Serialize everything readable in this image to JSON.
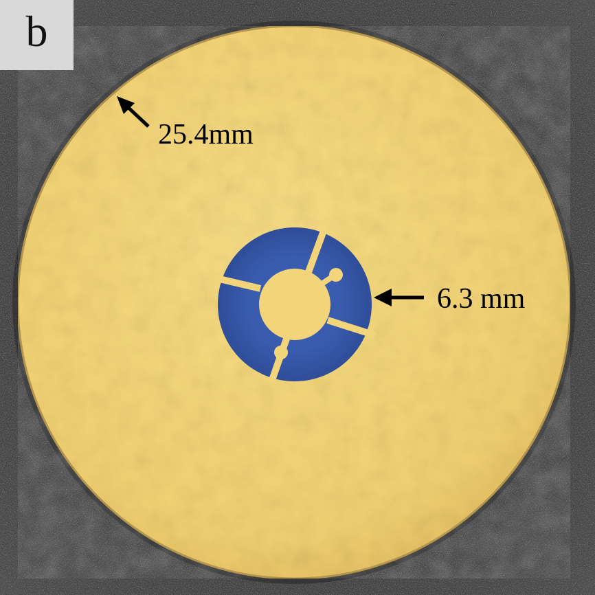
{
  "figure": {
    "panel_label": "b",
    "annotations": {
      "outer_diameter": "25.4mm",
      "inner_diameter": "6.3 mm"
    }
  },
  "colors": {
    "background": "#3b3b3b",
    "disk": "#f2d375",
    "disk_edge": "#c9a95a",
    "aperture_ring": "#3957a8",
    "label_box": "#d9d9d9",
    "text": "#000000"
  },
  "icons": {
    "outer_arrow": "arrow-up-left-icon",
    "inner_arrow": "arrow-left-icon"
  }
}
